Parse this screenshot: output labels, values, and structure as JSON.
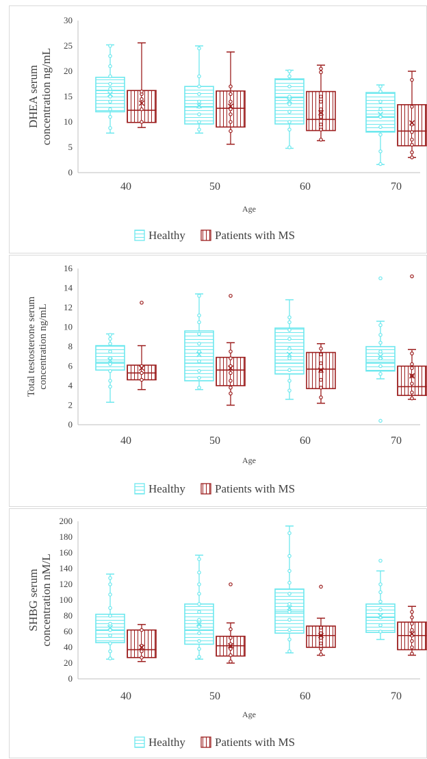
{
  "colors": {
    "healthy": "#6de8ee",
    "ms": "#9b1c1c",
    "axis": "#bfbfbf",
    "text": "#404040"
  },
  "chart_data": [
    {
      "type": "box",
      "xlabel": "Age",
      "ylabel": "DHEA serum concentration ng/mL",
      "ylim": [
        0,
        30
      ],
      "yticks": [
        "0",
        "5",
        "10",
        "15",
        "20",
        "25",
        "30"
      ],
      "categories": [
        "40",
        "50",
        "60",
        "70"
      ],
      "grid": false,
      "legend_position": "bottom",
      "series": [
        {
          "name": "Healthy",
          "boxes": [
            {
              "whisker_low": 7.8,
              "q1": 12,
              "median": 16.2,
              "mean": 15.5,
              "q3": 18.8,
              "whisker_high": 25.2,
              "points": [
                8.8,
                11,
                12.5,
                14,
                15,
                16.5,
                17.5,
                19,
                21,
                23,
                25
              ]
            },
            {
              "whisker_low": 7.8,
              "q1": 9.6,
              "median": 13,
              "mean": 13.2,
              "q3": 17,
              "whisker_high": 25,
              "points": [
                8.5,
                10,
                11.5,
                13,
                14,
                15.5,
                17,
                19,
                24.5
              ]
            },
            {
              "whisker_low": 4.8,
              "q1": 9.6,
              "median": 14.8,
              "mean": 14.2,
              "q3": 18.5,
              "whisker_high": 20.2,
              "points": [
                5,
                8.5,
                10,
                12,
                13.5,
                15,
                17,
                19,
                20
              ]
            },
            {
              "whisker_low": 1.6,
              "q1": 8,
              "median": 11,
              "mean": 11.5,
              "q3": 15.8,
              "whisker_high": 17.3,
              "points": [
                1.7,
                4.2,
                7.5,
                9,
                11,
                12.5,
                14,
                16,
                17
              ]
            }
          ]
        },
        {
          "name": "Patients with MS",
          "boxes": [
            {
              "whisker_low": 8.9,
              "q1": 9.9,
              "median": 12.3,
              "mean": 13.7,
              "q3": 16.2,
              "whisker_high": 25.6,
              "points": [
                10,
                12.5,
                14.5,
                15.5,
                16
              ]
            },
            {
              "whisker_low": 5.6,
              "q1": 9,
              "median": 12.7,
              "mean": 13.1,
              "q3": 16.1,
              "whisker_high": 23.8,
              "points": [
                8.2,
                10,
                11.5,
                12.5,
                14,
                15.5,
                17
              ]
            },
            {
              "whisker_low": 6.3,
              "q1": 8.3,
              "median": 10.5,
              "mean": 11.8,
              "q3": 16,
              "whisker_high": 21.2,
              "points": [
                6.5,
                8.5,
                9.5,
                11,
                12.5,
                14,
                15,
                19.8,
                20.5
              ]
            },
            {
              "whisker_low": 3,
              "q1": 5.3,
              "median": 8.2,
              "mean": 9.8,
              "q3": 13.4,
              "whisker_high": 20,
              "points": [
                3,
                4,
                5.5,
                6.5,
                8,
                9.5,
                13,
                18.3
              ]
            }
          ]
        }
      ]
    },
    {
      "type": "box",
      "xlabel": "Age",
      "ylabel": "Total testosterone serum concentration ng/mL",
      "ylim": [
        0,
        16
      ],
      "yticks": [
        "0",
        "2",
        "4",
        "6",
        "8",
        "10",
        "12",
        "14",
        "16"
      ],
      "categories": [
        "40",
        "50",
        "60",
        "70"
      ],
      "grid": false,
      "legend_position": "bottom",
      "series": [
        {
          "name": "Healthy",
          "boxes": [
            {
              "whisker_low": 2.3,
              "q1": 5.6,
              "median": 6.4,
              "mean": 6.6,
              "q3": 8.1,
              "whisker_high": 9.3,
              "points": [
                3.9,
                4.5,
                5.5,
                6.2,
                6.8,
                7.5,
                8.3,
                8.8,
                9.2
              ]
            },
            {
              "whisker_low": 3.6,
              "q1": 4.5,
              "median": 6.3,
              "mean": 7.2,
              "q3": 9.6,
              "whisker_high": 13.4,
              "points": [
                3.8,
                4.8,
                5.5,
                6.5,
                7.5,
                8.3,
                9.3,
                10.5,
                11.2,
                13.2
              ]
            },
            {
              "whisker_low": 2.6,
              "q1": 5.2,
              "median": 6.3,
              "mean": 7.2,
              "q3": 9.9,
              "whisker_high": 12.8,
              "points": [
                3.5,
                4.5,
                5.6,
                6.8,
                7.8,
                8.8,
                9.7,
                10.5,
                11
              ]
            },
            {
              "whisker_low": 4.7,
              "q1": 5.5,
              "median": 6.4,
              "mean": 7,
              "q3": 8,
              "whisker_high": 10.6,
              "points": [
                0.4,
                5.2,
                6,
                6.8,
                7.5,
                8.4,
                9.2,
                10.2,
                15
              ]
            }
          ]
        },
        {
          "name": "Patients with MS",
          "boxes": [
            {
              "whisker_low": 3.6,
              "q1": 4.6,
              "median": 5.3,
              "mean": 5.8,
              "q3": 6.1,
              "whisker_high": 8.1,
              "points": [
                4.6,
                5.3,
                6,
                12.5
              ]
            },
            {
              "whisker_low": 2,
              "q1": 4,
              "median": 5.6,
              "mean": 5.8,
              "q3": 6.9,
              "whisker_high": 8.4,
              "points": [
                3.2,
                3.8,
                4.5,
                5.3,
                6,
                6.8,
                7.5,
                13.2
              ]
            },
            {
              "whisker_low": 2.2,
              "q1": 3.7,
              "median": 5.7,
              "mean": 5.6,
              "q3": 7.4,
              "whisker_high": 8.3,
              "points": [
                2.8,
                3.8,
                4.6,
                5.5,
                6.3,
                7.2,
                7.8
              ]
            },
            {
              "whisker_low": 2.6,
              "q1": 3,
              "median": 3.9,
              "mean": 5,
              "q3": 6,
              "whisker_high": 7.7,
              "points": [
                2.7,
                3.3,
                4.2,
                5,
                5.8,
                6.2,
                7.3,
                15.2
              ]
            }
          ]
        }
      ]
    },
    {
      "type": "box",
      "xlabel": "Age",
      "ylabel": "SHBG serum concentration nM/L",
      "ylim": [
        0,
        200
      ],
      "yticks": [
        "0",
        "20",
        "40",
        "60",
        "80",
        "100",
        "120",
        "140",
        "160",
        "180",
        "200"
      ],
      "categories": [
        "40",
        "50",
        "60",
        "70"
      ],
      "grid": false,
      "legend_position": "bottom",
      "series": [
        {
          "name": "Healthy",
          "boxes": [
            {
              "whisker_low": 25,
              "q1": 46,
              "median": 62,
              "mean": 65,
              "q3": 82,
              "whisker_high": 133,
              "points": [
                26,
                35,
                45,
                55,
                62,
                70,
                80,
                90,
                107,
                120,
                128
              ]
            },
            {
              "whisker_low": 25,
              "q1": 44,
              "median": 62,
              "mean": 70,
              "q3": 95,
              "whisker_high": 157,
              "points": [
                28,
                38,
                48,
                58,
                66,
                75,
                85,
                95,
                108,
                120,
                135,
                152
              ]
            },
            {
              "whisker_low": 33,
              "q1": 58,
              "median": 85,
              "mean": 90,
              "q3": 114,
              "whisker_high": 194,
              "points": [
                35,
                50,
                62,
                75,
                85,
                95,
                108,
                122,
                137,
                156,
                185
              ]
            },
            {
              "whisker_low": 50,
              "q1": 59,
              "median": 78,
              "mean": 80,
              "q3": 95,
              "whisker_high": 137,
              "points": [
                60,
                68,
                78,
                88,
                98,
                110,
                120,
                150
              ]
            }
          ]
        },
        {
          "name": "Patients with MS",
          "boxes": [
            {
              "whisker_low": 22,
              "q1": 27,
              "median": 37,
              "mean": 40,
              "q3": 62,
              "whisker_high": 69,
              "points": [
                27,
                35,
                42,
                62
              ]
            },
            {
              "whisker_low": 20,
              "q1": 29,
              "median": 42,
              "mean": 42,
              "q3": 54,
              "whisker_high": 71,
              "points": [
                22,
                30,
                38,
                44,
                52,
                63,
                120
              ]
            },
            {
              "whisker_low": 30,
              "q1": 40,
              "median": 55,
              "mean": 55,
              "q3": 67,
              "whisker_high": 77,
              "points": [
                31,
                38,
                45,
                52,
                58,
                65,
                117
              ]
            },
            {
              "whisker_low": 30,
              "q1": 37,
              "median": 55,
              "mean": 57,
              "q3": 72,
              "whisker_high": 92,
              "points": [
                32,
                40,
                48,
                55,
                62,
                70,
                78,
                85
              ]
            }
          ]
        }
      ]
    }
  ]
}
